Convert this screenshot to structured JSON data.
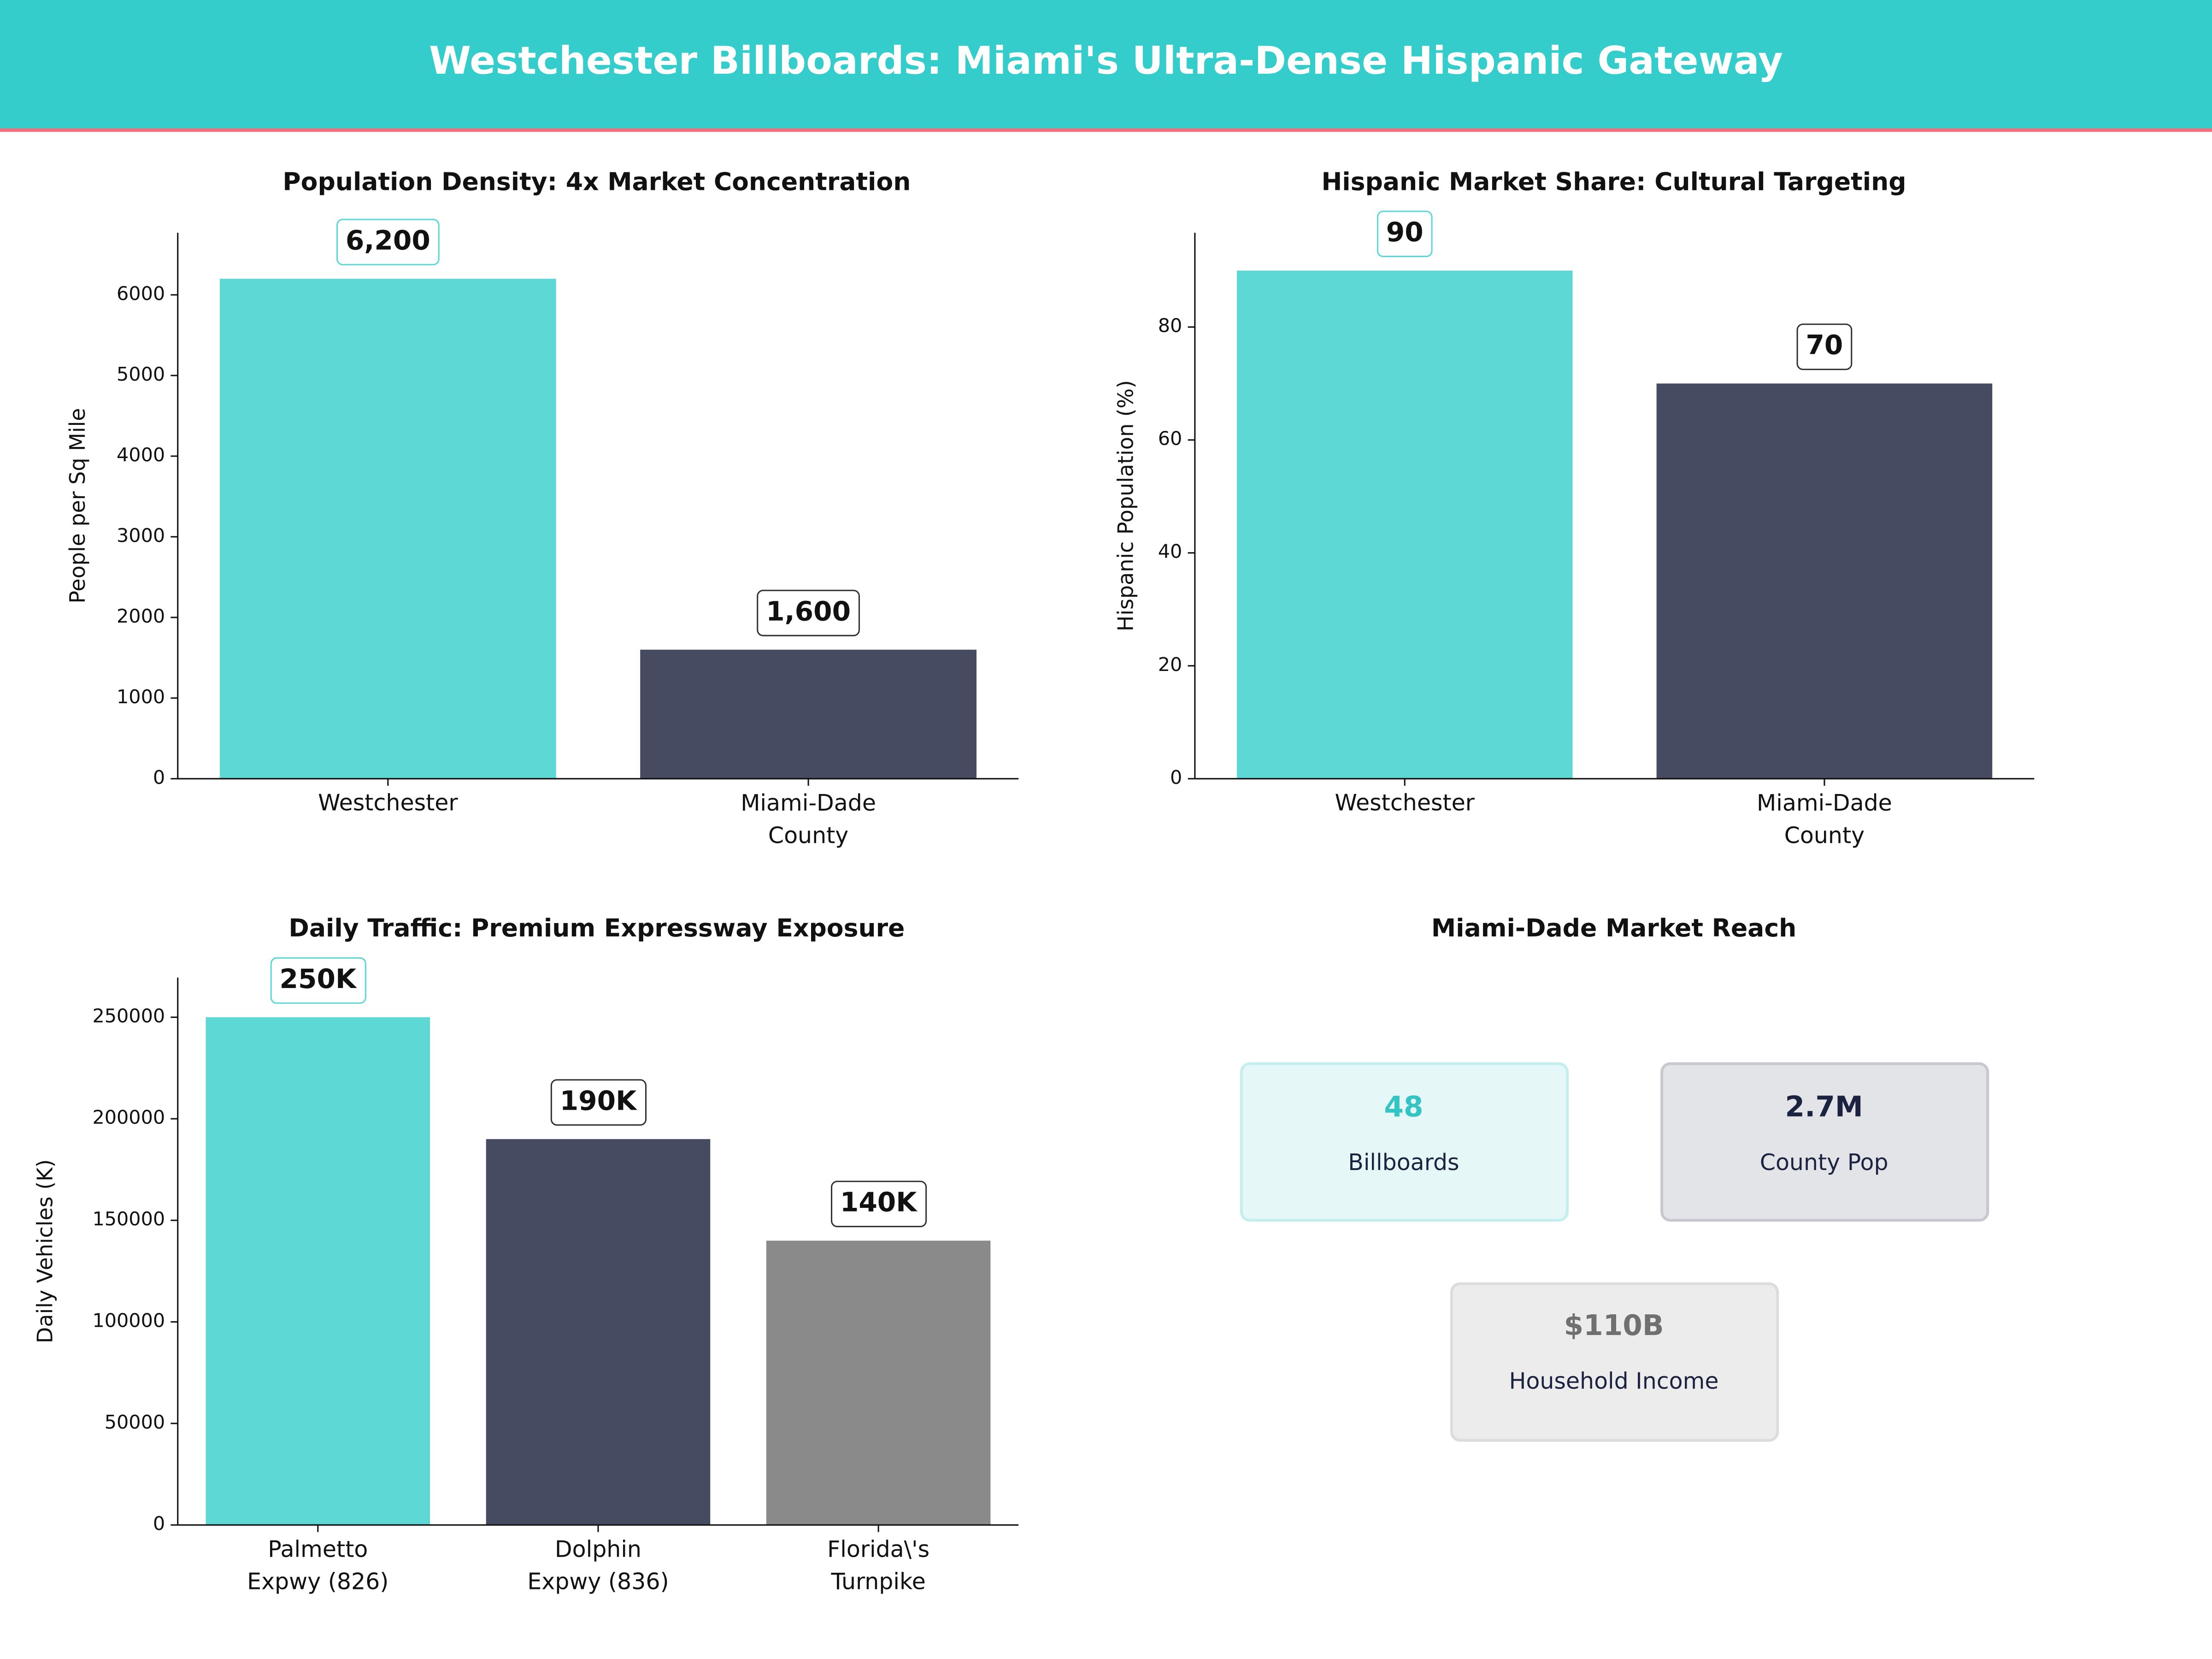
{
  "header": {
    "title": "Westchester Billboards: Miami's Ultra-Dense Hispanic Gateway"
  },
  "chart_data": [
    {
      "type": "bar",
      "title": "Population Density: 4x Market Concentration",
      "y_label": "People per Sq Mile",
      "categories": [
        "Westchester",
        "Miami-Dade\nCounty"
      ],
      "values": [
        6200,
        1600
      ],
      "value_labels": [
        "6,200",
        "1,600"
      ],
      "colors": [
        "#5dd8d5",
        "#464b62"
      ],
      "ylim": [
        0,
        6770
      ],
      "yticks": [
        0,
        1000,
        2000,
        3000,
        4000,
        5000,
        6000
      ]
    },
    {
      "type": "bar",
      "title": "Hispanic Market Share: Cultural Targeting",
      "y_label": "Hispanic Population (%)",
      "categories": [
        "Westchester",
        "Miami-Dade\nCounty"
      ],
      "values": [
        90,
        70
      ],
      "colors": [
        "#5dd8d5",
        "#464b62"
      ],
      "ylim": [
        0,
        96.7
      ],
      "yticks": [
        0,
        20,
        40,
        60,
        80
      ]
    },
    {
      "type": "bar",
      "title": "Daily Traffic: Premium Expressway Exposure",
      "y_label": "Daily Vehicles (K)",
      "categories": [
        "Palmetto\nExpwy (826)",
        "Dolphin\nExpwy (836)",
        "Florida\\'s\nTurnpike"
      ],
      "values": [
        250000,
        190000,
        140000
      ],
      "value_labels": [
        "250K",
        "190K",
        "140K"
      ],
      "colors": [
        "#5dd8d5",
        "#464b62",
        "#8a8a8a"
      ],
      "ylim": [
        0,
        269500
      ],
      "yticks": [
        0,
        50000,
        100000,
        150000,
        200000,
        250000
      ]
    }
  ],
  "kpis": {
    "title": "Miami-Dade Market Reach",
    "cards": [
      {
        "value": "48",
        "label": "Billboards"
      },
      {
        "value": "2.7M",
        "label": "County Pop"
      },
      {
        "value": "$110B",
        "label": "Household Income"
      }
    ]
  }
}
